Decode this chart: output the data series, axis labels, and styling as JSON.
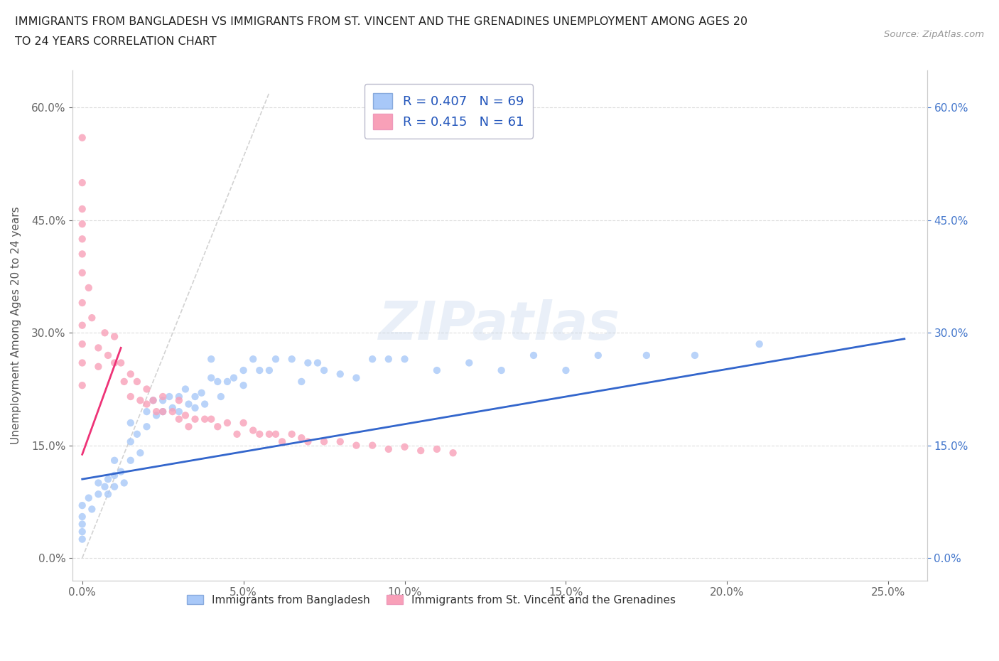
{
  "title_line1": "IMMIGRANTS FROM BANGLADESH VS IMMIGRANTS FROM ST. VINCENT AND THE GRENADINES UNEMPLOYMENT AMONG AGES 20",
  "title_line2": "TO 24 YEARS CORRELATION CHART",
  "source_text": "Source: ZipAtlas.com",
  "watermark": "ZIPatlas",
  "ylabel": "Unemployment Among Ages 20 to 24 years",
  "legend_label1": "Immigrants from Bangladesh",
  "legend_label2": "Immigrants from St. Vincent and the Grenadines",
  "R1": 0.407,
  "N1": 69,
  "R2": 0.415,
  "N2": 61,
  "xlim": [
    -0.003,
    0.262
  ],
  "ylim": [
    -0.03,
    0.65
  ],
  "xticks": [
    0.0,
    0.05,
    0.1,
    0.15,
    0.2,
    0.25
  ],
  "yticks": [
    0.0,
    0.15,
    0.3,
    0.45,
    0.6
  ],
  "color_bangladesh": "#A8C8F8",
  "color_stv": "#F8A0B8",
  "color_trend_bangladesh": "#3366CC",
  "color_trend_stv": "#EE3377",
  "scatter_alpha": 0.8,
  "scatter_size": 55,
  "bangladesh_x": [
    0.0,
    0.0,
    0.0,
    0.0,
    0.0,
    0.002,
    0.003,
    0.005,
    0.005,
    0.007,
    0.008,
    0.008,
    0.01,
    0.01,
    0.01,
    0.012,
    0.013,
    0.015,
    0.015,
    0.015,
    0.017,
    0.018,
    0.02,
    0.02,
    0.022,
    0.023,
    0.025,
    0.025,
    0.027,
    0.028,
    0.03,
    0.03,
    0.032,
    0.033,
    0.035,
    0.035,
    0.037,
    0.038,
    0.04,
    0.04,
    0.042,
    0.043,
    0.045,
    0.047,
    0.05,
    0.05,
    0.053,
    0.055,
    0.058,
    0.06,
    0.065,
    0.068,
    0.07,
    0.073,
    0.075,
    0.08,
    0.085,
    0.09,
    0.095,
    0.1,
    0.11,
    0.12,
    0.13,
    0.14,
    0.15,
    0.16,
    0.175,
    0.19,
    0.21
  ],
  "bangladesh_y": [
    0.07,
    0.055,
    0.045,
    0.035,
    0.025,
    0.08,
    0.065,
    0.1,
    0.085,
    0.095,
    0.105,
    0.085,
    0.13,
    0.11,
    0.095,
    0.115,
    0.1,
    0.18,
    0.155,
    0.13,
    0.165,
    0.14,
    0.195,
    0.175,
    0.21,
    0.19,
    0.21,
    0.195,
    0.215,
    0.2,
    0.215,
    0.195,
    0.225,
    0.205,
    0.215,
    0.2,
    0.22,
    0.205,
    0.265,
    0.24,
    0.235,
    0.215,
    0.235,
    0.24,
    0.25,
    0.23,
    0.265,
    0.25,
    0.25,
    0.265,
    0.265,
    0.235,
    0.26,
    0.26,
    0.25,
    0.245,
    0.24,
    0.265,
    0.265,
    0.265,
    0.25,
    0.26,
    0.25,
    0.27,
    0.25,
    0.27,
    0.27,
    0.27,
    0.285
  ],
  "stv_x": [
    0.0,
    0.0,
    0.0,
    0.0,
    0.0,
    0.0,
    0.0,
    0.0,
    0.0,
    0.0,
    0.0,
    0.0,
    0.002,
    0.003,
    0.005,
    0.005,
    0.007,
    0.008,
    0.01,
    0.01,
    0.012,
    0.013,
    0.015,
    0.015,
    0.017,
    0.018,
    0.02,
    0.02,
    0.022,
    0.023,
    0.025,
    0.025,
    0.028,
    0.03,
    0.03,
    0.032,
    0.033,
    0.035,
    0.038,
    0.04,
    0.042,
    0.045,
    0.048,
    0.05,
    0.053,
    0.055,
    0.058,
    0.06,
    0.062,
    0.065,
    0.068,
    0.07,
    0.075,
    0.08,
    0.085,
    0.09,
    0.095,
    0.1,
    0.105,
    0.11,
    0.115
  ],
  "stv_y": [
    0.56,
    0.5,
    0.465,
    0.445,
    0.425,
    0.405,
    0.38,
    0.34,
    0.31,
    0.285,
    0.26,
    0.23,
    0.36,
    0.32,
    0.28,
    0.255,
    0.3,
    0.27,
    0.295,
    0.26,
    0.26,
    0.235,
    0.245,
    0.215,
    0.235,
    0.21,
    0.225,
    0.205,
    0.21,
    0.195,
    0.215,
    0.195,
    0.195,
    0.21,
    0.185,
    0.19,
    0.175,
    0.185,
    0.185,
    0.185,
    0.175,
    0.18,
    0.165,
    0.18,
    0.17,
    0.165,
    0.165,
    0.165,
    0.155,
    0.165,
    0.16,
    0.155,
    0.155,
    0.155,
    0.15,
    0.15,
    0.145,
    0.148,
    0.143,
    0.145,
    0.14
  ],
  "trend_bangladesh_x0": 0.0,
  "trend_bangladesh_x1": 0.255,
  "trend_bangladesh_y0": 0.105,
  "trend_bangladesh_y1": 0.292,
  "trend_stv_x0": 0.0,
  "trend_stv_x1": 0.012,
  "trend_stv_y0": 0.138,
  "trend_stv_y1": 0.28
}
